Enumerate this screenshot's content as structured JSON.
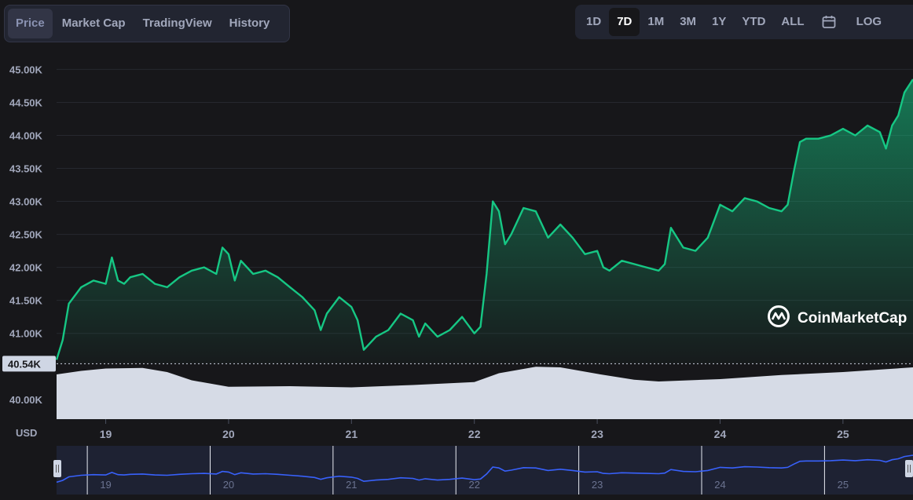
{
  "tabs": [
    {
      "label": "Price",
      "active": true
    },
    {
      "label": "Market Cap",
      "active": false
    },
    {
      "label": "TradingView",
      "active": false
    },
    {
      "label": "History",
      "active": false
    }
  ],
  "ranges": {
    "items": [
      {
        "label": "1D",
        "active": false
      },
      {
        "label": "7D",
        "active": true
      },
      {
        "label": "1M",
        "active": false
      },
      {
        "label": "3M",
        "active": false
      },
      {
        "label": "1Y",
        "active": false
      },
      {
        "label": "YTD",
        "active": false
      },
      {
        "label": "ALL",
        "active": false
      }
    ],
    "calendar_icon": "calendar-icon",
    "log_label": "LOG"
  },
  "watermark": {
    "text": "CoinMarketCap",
    "icon": "coinmarketcap-logo-icon"
  },
  "colors": {
    "line": "#16c784",
    "navigator": "#3861fb",
    "volume": "#d6dbe6",
    "background": "#17171a"
  },
  "chart_data": {
    "type": "line",
    "currency_label": "USD",
    "y_ticks": [
      "40.00K",
      "41.00K",
      "41.50K",
      "42.00K",
      "42.50K",
      "43.00K",
      "43.50K",
      "44.00K",
      "44.50K",
      "45.00K"
    ],
    "ylim": [
      39700,
      45100
    ],
    "x_ticks": [
      "19",
      "20",
      "21",
      "22",
      "23",
      "24",
      "25"
    ],
    "x_tick_values": [
      19,
      20,
      21,
      22,
      23,
      24,
      25
    ],
    "xlim": [
      18.6,
      25.57
    ],
    "open_price_label": "40.54K",
    "open_price": 40540,
    "series": [
      {
        "x": [
          18.6,
          18.65,
          18.7,
          18.8,
          18.9,
          19.0,
          19.05,
          19.1,
          19.15,
          19.2,
          19.3,
          19.4,
          19.5,
          19.6,
          19.7,
          19.8,
          19.9,
          19.95,
          20.0,
          20.05,
          20.1,
          20.2,
          20.3,
          20.4,
          20.5,
          20.6,
          20.7,
          20.75,
          20.8,
          20.9,
          21.0,
          21.05,
          21.1,
          21.2,
          21.3,
          21.4,
          21.5,
          21.55,
          21.6,
          21.7,
          21.8,
          21.9,
          22.0,
          22.05,
          22.1,
          22.15,
          22.2,
          22.25,
          22.3,
          22.4,
          22.5,
          22.6,
          22.7,
          22.8,
          22.9,
          23.0,
          23.05,
          23.1,
          23.2,
          23.3,
          23.4,
          23.5,
          23.55,
          23.6,
          23.7,
          23.8,
          23.9,
          24.0,
          24.05,
          24.1,
          24.2,
          24.3,
          24.4,
          24.5,
          24.55,
          24.6,
          24.65,
          24.7,
          24.8,
          24.9,
          25.0,
          25.1,
          25.2,
          25.3,
          25.35,
          25.4,
          25.45,
          25.5,
          25.57
        ],
        "y": [
          40600,
          40900,
          41450,
          41700,
          41800,
          41750,
          42150,
          41800,
          41750,
          41850,
          41900,
          41750,
          41700,
          41850,
          41950,
          42000,
          41900,
          42300,
          42200,
          41800,
          42100,
          41900,
          41950,
          41850,
          41700,
          41550,
          41350,
          41050,
          41300,
          41550,
          41400,
          41200,
          40750,
          40950,
          41050,
          41300,
          41200,
          40950,
          41150,
          40950,
          41050,
          41250,
          41000,
          41100,
          41900,
          43000,
          42850,
          42350,
          42500,
          42900,
          42850,
          42450,
          42650,
          42450,
          42200,
          42250,
          42000,
          41950,
          42100,
          42050,
          42000,
          41950,
          42050,
          42600,
          42300,
          42250,
          42450,
          42950,
          42900,
          42850,
          43050,
          43000,
          42900,
          42850,
          42950,
          43450,
          43900,
          43950,
          43950,
          44000,
          44100,
          44000,
          44150,
          44050,
          43800,
          44150,
          44300,
          44650,
          44850
        ]
      }
    ],
    "volume": {
      "x": [
        18.6,
        18.8,
        19.0,
        19.3,
        19.5,
        19.7,
        20.0,
        20.5,
        21.0,
        21.5,
        22.0,
        22.2,
        22.5,
        22.7,
        23.0,
        23.3,
        23.5,
        24.0,
        24.5,
        25.0,
        25.57
      ],
      "y": [
        0.76,
        0.82,
        0.86,
        0.87,
        0.8,
        0.66,
        0.55,
        0.56,
        0.54,
        0.58,
        0.63,
        0.78,
        0.89,
        0.88,
        0.77,
        0.67,
        0.64,
        0.68,
        0.75,
        0.8,
        0.88
      ]
    },
    "navigator": {
      "x_ticks": [
        "19",
        "20",
        "21",
        "22",
        "23",
        "24",
        "25"
      ]
    }
  }
}
